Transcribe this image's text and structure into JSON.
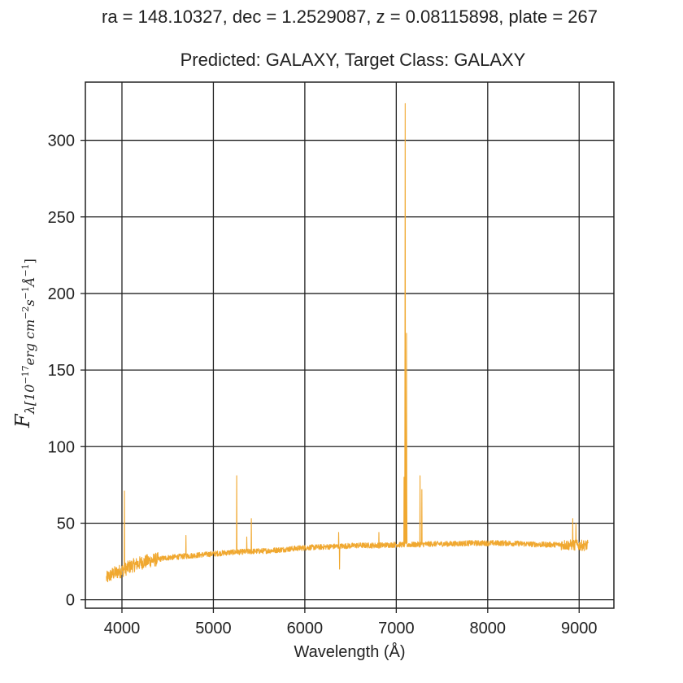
{
  "chart_data": {
    "type": "line",
    "suptitle": "ra = 148.10327, dec = 1.2529087, z = 0.08115898, plate = 267",
    "title": "Predicted: GALAXY, Target Class: GALAXY",
    "xlabel": "Wavelength (Å)",
    "ylabel": {
      "main": "F",
      "subscript": "λ[10",
      "exp1": "−17",
      "mid": "erg cm",
      "exp2": "−2",
      "s": "s",
      "exp3": "−1",
      "a": "Å",
      "exp4": "−1",
      "close": "]"
    },
    "xlim": [
      3600,
      9380
    ],
    "ylim": [
      -5.5,
      338
    ],
    "xticks": [
      4000,
      5000,
      6000,
      7000,
      8000,
      9000
    ],
    "yticks": [
      0,
      50,
      100,
      150,
      200,
      250,
      300
    ],
    "grid": true,
    "line_color": "#f0a830",
    "series": [
      {
        "continuum": {
          "x": [
            3830,
            3900,
            4000,
            4100,
            4200,
            4300,
            4400,
            4500,
            4600,
            4700,
            4800,
            4900,
            5000,
            5200,
            5400,
            5600,
            5800,
            6000,
            6200,
            6400,
            6600,
            6800,
            7000,
            7200,
            7400,
            7600,
            7800,
            8000,
            8200,
            8400,
            8600,
            8800,
            9000,
            9100
          ],
          "y": [
            14,
            17,
            19,
            22,
            24,
            25.5,
            26.5,
            27.5,
            28,
            28.5,
            29,
            29.5,
            30,
            31,
            31.5,
            32,
            33,
            34,
            34.5,
            35,
            35.5,
            35.5,
            36,
            36,
            36.5,
            36.5,
            37,
            37,
            37,
            36.5,
            36,
            36,
            35.5,
            35.5
          ]
        },
        "lines": [
          {
            "x": 4028,
            "y": 71
          },
          {
            "x": 4700,
            "y": 42
          },
          {
            "x": 5255,
            "y": 81
          },
          {
            "x": 5365,
            "y": 41
          },
          {
            "x": 5415,
            "y": 53
          },
          {
            "x": 6370,
            "y": 44
          },
          {
            "x": 6380,
            "y": 20
          },
          {
            "x": 6810,
            "y": 44
          },
          {
            "x": 7085,
            "y": 80
          },
          {
            "x": 7097,
            "y": 324
          },
          {
            "x": 7113,
            "y": 174
          },
          {
            "x": 7260,
            "y": 81
          },
          {
            "x": 7280,
            "y": 72
          },
          {
            "x": 8930,
            "y": 53
          },
          {
            "x": 8965,
            "y": 50
          }
        ]
      }
    ]
  }
}
